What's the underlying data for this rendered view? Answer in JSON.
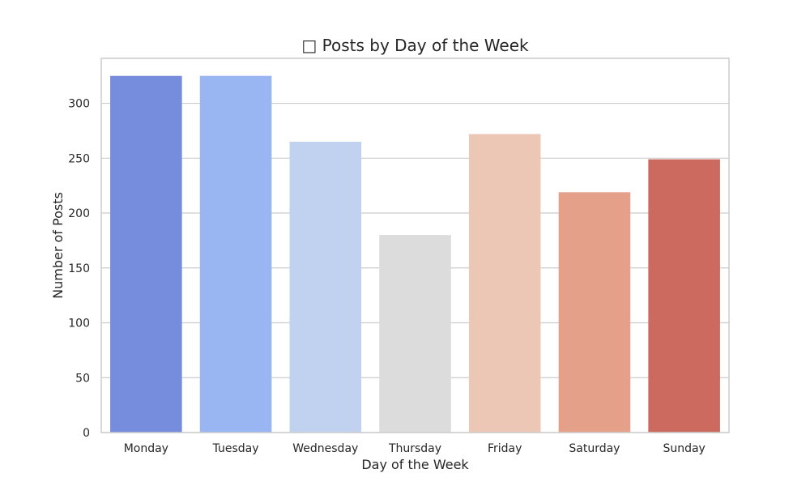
{
  "chart_data": {
    "type": "bar",
    "title": "□ Posts by Day of the Week",
    "xlabel": "Day of the Week",
    "ylabel": "Number of Posts",
    "categories": [
      "Monday",
      "Tuesday",
      "Wednesday",
      "Thursday",
      "Friday",
      "Saturday",
      "Sunday"
    ],
    "values": [
      325,
      325,
      265,
      180,
      272,
      219,
      249
    ],
    "ylim": [
      0,
      341
    ],
    "yticks": [
      "0",
      "50",
      "100",
      "150",
      "200",
      "250",
      "300"
    ],
    "colors": [
      "#768cdc",
      "#9ab6f2",
      "#c1d1f0",
      "#dcdcdc",
      "#ecc7b6",
      "#e5a08a",
      "#cd6a5f"
    ],
    "grid": true,
    "legend": "none"
  }
}
